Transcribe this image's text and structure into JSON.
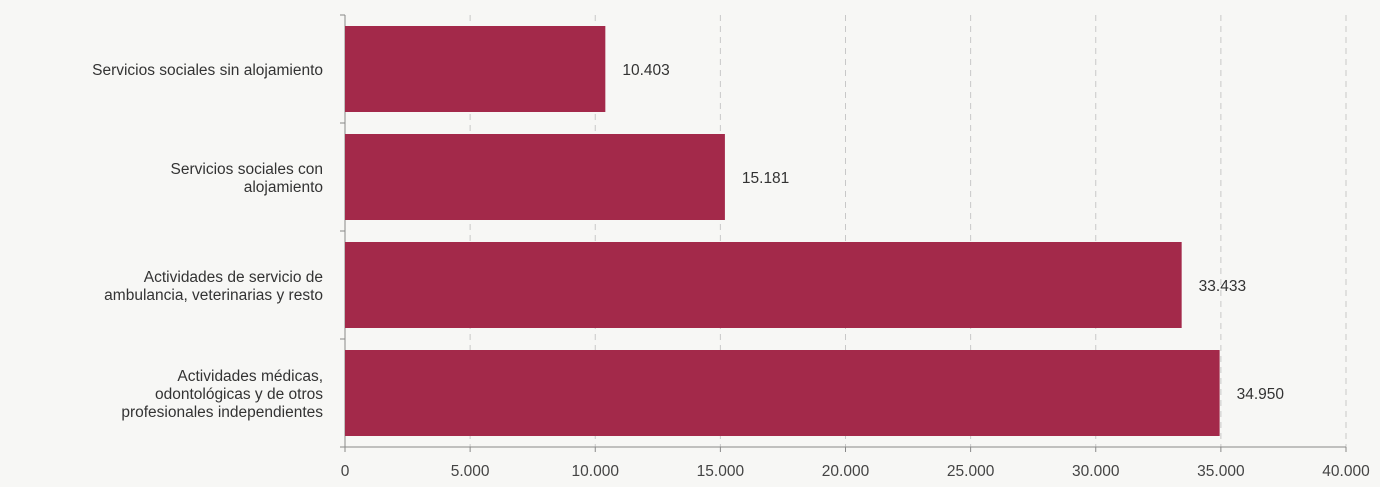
{
  "chart_data": {
    "type": "bar",
    "orientation": "horizontal",
    "categories": [
      "Servicios sociales sin alojamiento",
      "Servicios sociales con alojamiento",
      "Actividades de servicio de ambulancia, veterinarias y resto",
      "Actividades médicas, odontológicas y de otros profesionales independientes"
    ],
    "category_label_lines": [
      [
        "Servicios sociales sin alojamiento"
      ],
      [
        "Servicios sociales con",
        "alojamiento"
      ],
      [
        "Actividades de servicio de",
        "ambulancia, veterinarias y resto"
      ],
      [
        "Actividades médicas,",
        "odontológicas y de otros",
        "profesionales independientes"
      ]
    ],
    "values": [
      10403,
      15181,
      33433,
      34950
    ],
    "value_labels": [
      "10.403",
      "15.181",
      "33.433",
      "34.950"
    ],
    "xlim": [
      0,
      40000
    ],
    "x_ticks": [
      0,
      5000,
      10000,
      15000,
      20000,
      25000,
      30000,
      35000,
      40000
    ],
    "x_tick_labels": [
      "0",
      "5.000",
      "10.000",
      "15.000",
      "20.000",
      "25.000",
      "30.000",
      "35.000",
      "40.000"
    ],
    "title": "",
    "xlabel": "",
    "ylabel": "",
    "grid": "vertical dashed",
    "legend": "none",
    "bar_color": "#a3294a",
    "grid_color": "#c8c8c8",
    "axis_color": "#888888"
  }
}
